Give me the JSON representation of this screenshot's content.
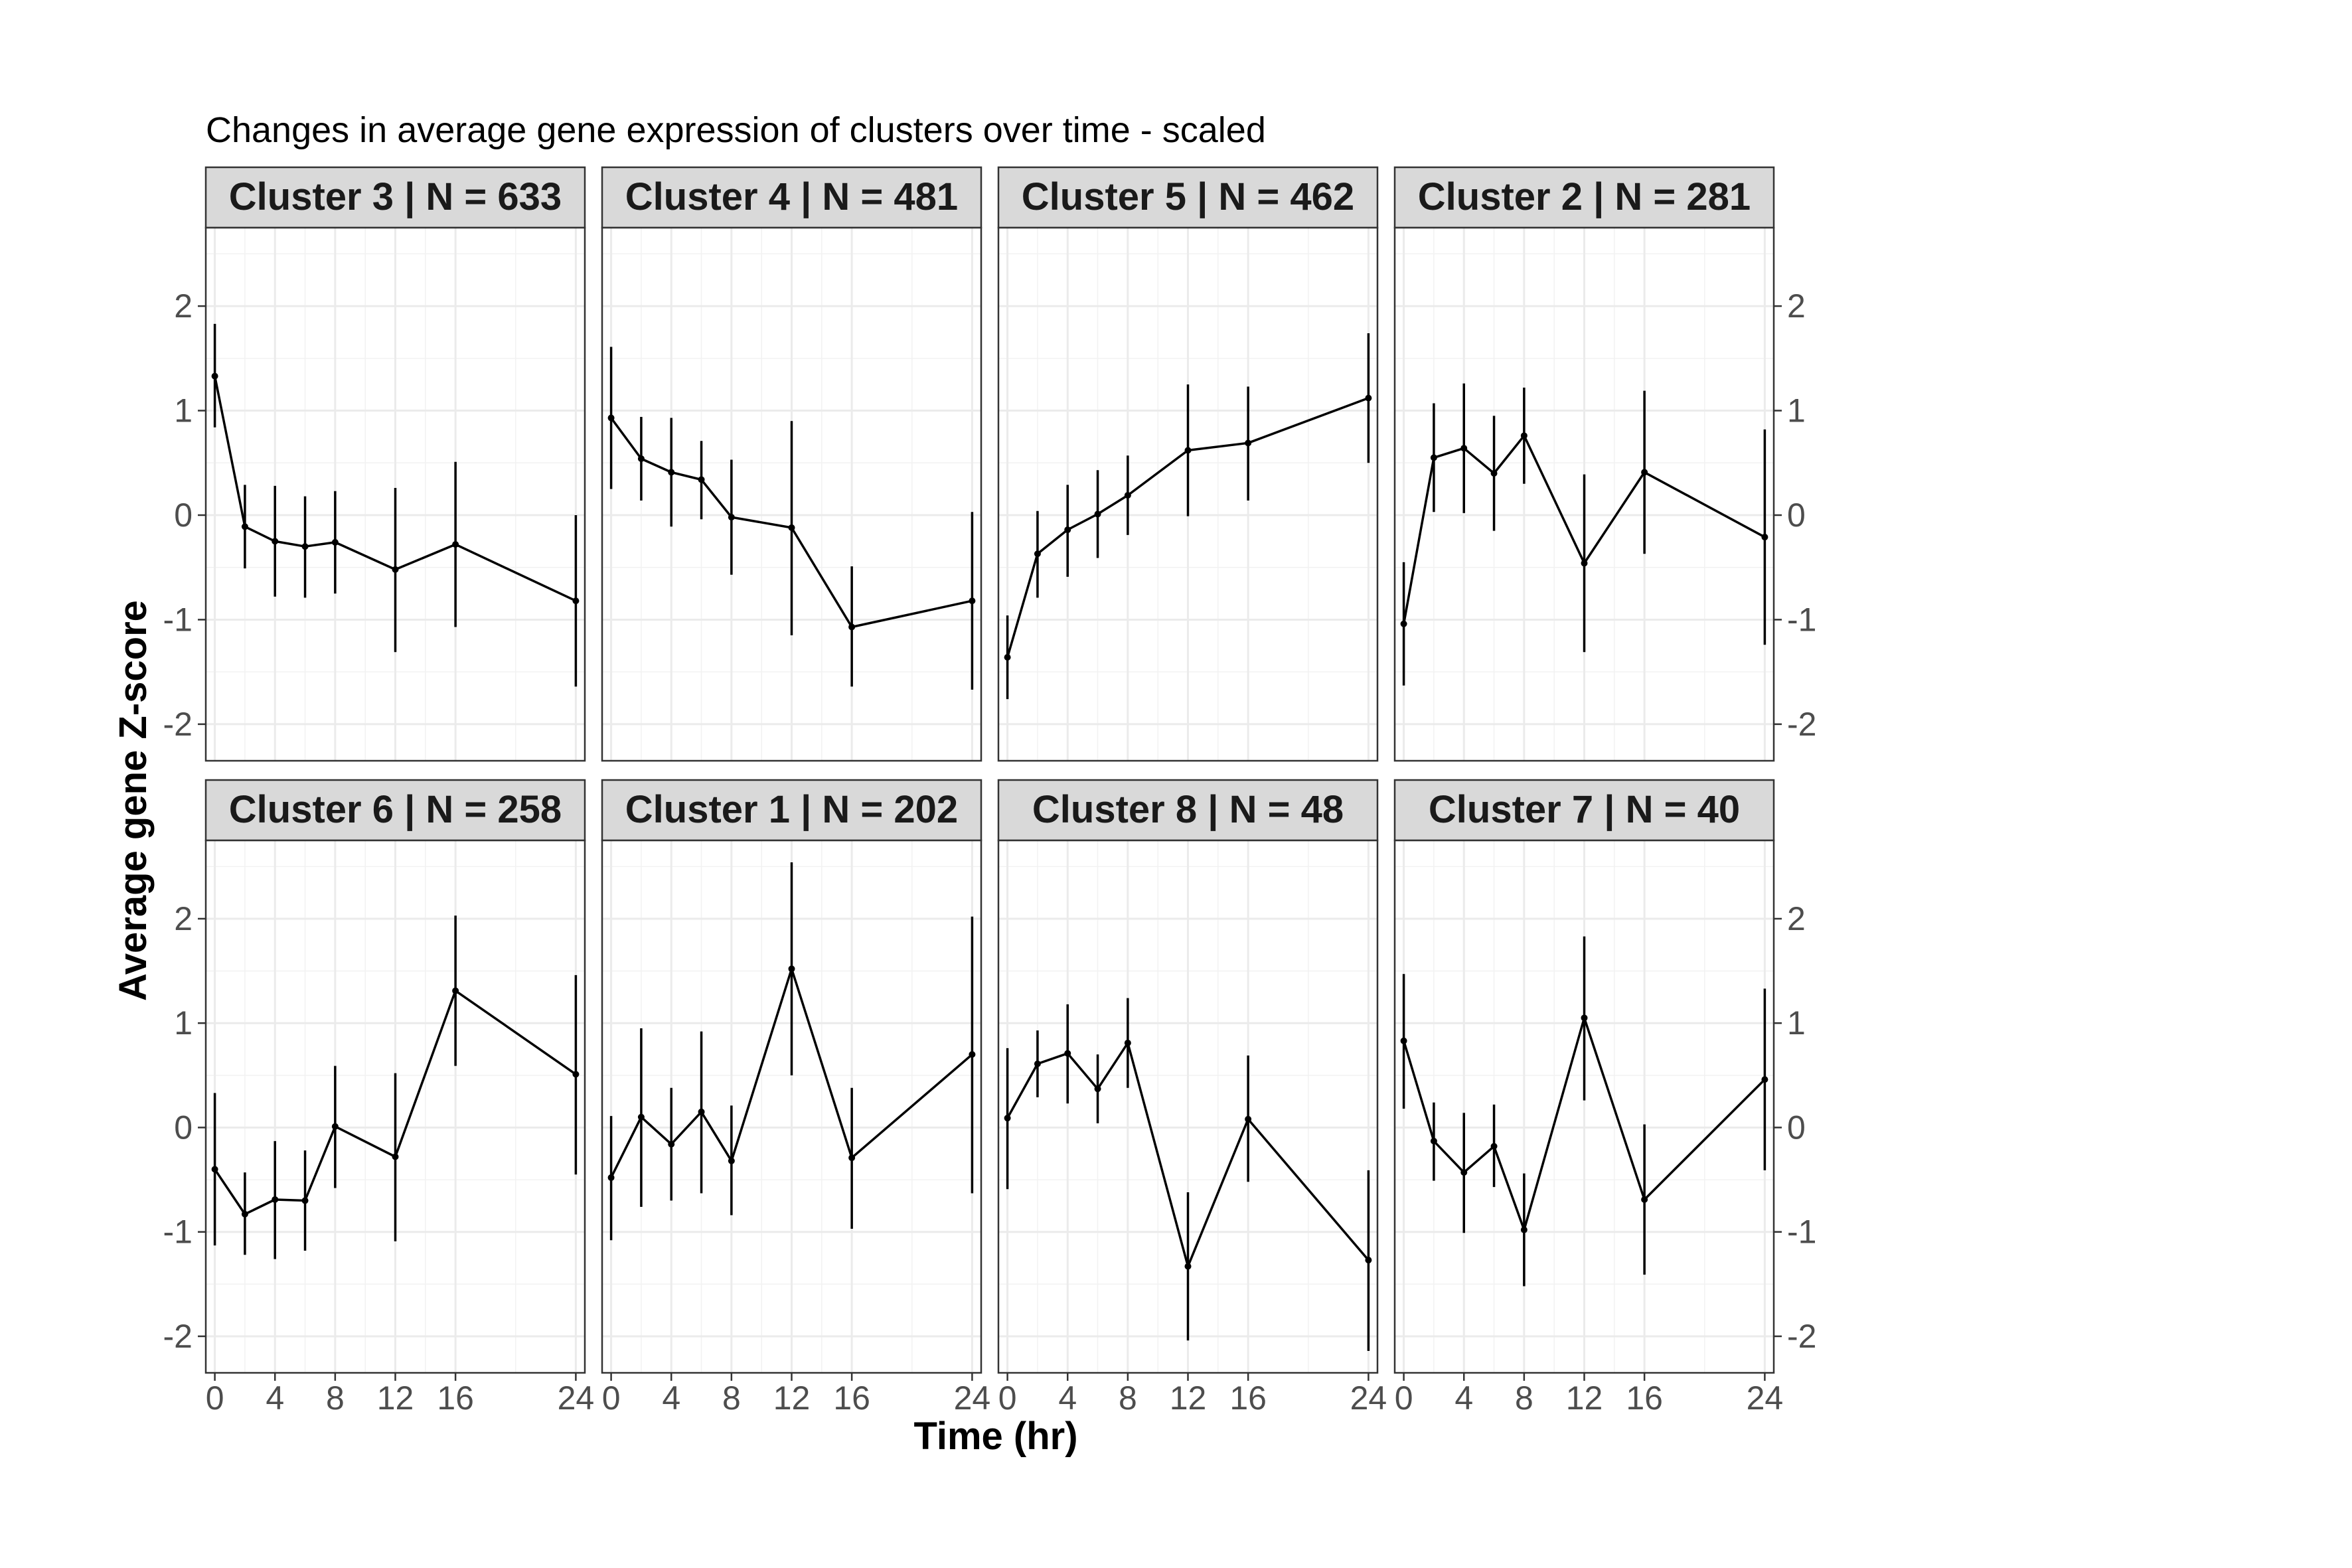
{
  "chart_data": {
    "type": "line",
    "title": "Changes in average gene expression of clusters over time - scaled",
    "xlabel": "Time (hr)",
    "ylabel": "Average gene Z-score",
    "x": [
      0,
      2,
      4,
      6,
      8,
      12,
      16,
      24
    ],
    "x_ticks": [
      0,
      4,
      8,
      12,
      16,
      24
    ],
    "y_ticks": [
      -2,
      -1,
      0,
      1,
      2
    ],
    "xlim": [
      -0.6,
      24.6
    ],
    "ylim": [
      -2.35,
      2.75
    ],
    "grid": true,
    "error_bars": true,
    "panels": [
      {
        "label": "Cluster 3 | N = 633",
        "values": [
          1.33,
          -0.11,
          -0.25,
          -0.3,
          -0.26,
          -0.52,
          -0.28,
          -0.82
        ],
        "lower": [
          0.84,
          -0.51,
          -0.78,
          -0.79,
          -0.75,
          -1.31,
          -1.07,
          -1.64
        ],
        "upper": [
          1.83,
          0.29,
          0.28,
          0.18,
          0.23,
          0.26,
          0.51,
          0.0
        ]
      },
      {
        "label": "Cluster 4 | N = 481",
        "values": [
          0.93,
          0.54,
          0.41,
          0.34,
          -0.02,
          -0.12,
          -1.07,
          -0.82
        ],
        "lower": [
          0.25,
          0.14,
          -0.11,
          -0.04,
          -0.57,
          -1.15,
          -1.64,
          -1.67
        ],
        "upper": [
          1.61,
          0.94,
          0.93,
          0.71,
          0.53,
          0.9,
          -0.49,
          0.03
        ]
      },
      {
        "label": "Cluster 5 | N = 462",
        "values": [
          -1.36,
          -0.37,
          -0.14,
          0.01,
          0.19,
          0.62,
          0.69,
          1.12
        ],
        "lower": [
          -1.76,
          -0.79,
          -0.59,
          -0.41,
          -0.19,
          -0.01,
          0.14,
          0.5
        ],
        "upper": [
          -0.96,
          0.04,
          0.29,
          0.43,
          0.57,
          1.25,
          1.23,
          1.74
        ]
      },
      {
        "label": "Cluster 2 | N = 281",
        "values": [
          -1.04,
          0.55,
          0.64,
          0.4,
          0.76,
          -0.46,
          0.41,
          -0.21
        ],
        "lower": [
          -1.63,
          0.03,
          0.02,
          -0.15,
          0.3,
          -1.31,
          -0.37,
          -1.24
        ],
        "upper": [
          -0.45,
          1.07,
          1.26,
          0.95,
          1.22,
          0.39,
          1.19,
          0.82
        ]
      },
      {
        "label": "Cluster 6 | N = 258",
        "values": [
          -0.4,
          -0.83,
          -0.69,
          -0.7,
          0.01,
          -0.28,
          1.31,
          0.51
        ],
        "lower": [
          -1.13,
          -1.22,
          -1.26,
          -1.18,
          -0.58,
          -1.09,
          0.59,
          -0.45
        ],
        "upper": [
          0.33,
          -0.43,
          -0.13,
          -0.22,
          0.59,
          0.52,
          2.03,
          1.46
        ]
      },
      {
        "label": "Cluster 1 | N = 202",
        "values": [
          -0.48,
          0.1,
          -0.16,
          0.15,
          -0.32,
          1.52,
          -0.29,
          0.7
        ],
        "lower": [
          -1.08,
          -0.76,
          -0.7,
          -0.63,
          -0.84,
          0.5,
          -0.97,
          -0.63
        ],
        "upper": [
          0.11,
          0.95,
          0.38,
          0.92,
          0.21,
          2.54,
          0.38,
          2.02
        ]
      },
      {
        "label": "Cluster 8 | N = 48",
        "values": [
          0.09,
          0.61,
          0.71,
          0.37,
          0.81,
          -1.33,
          0.08,
          -1.27
        ],
        "lower": [
          -0.59,
          0.29,
          0.23,
          0.04,
          0.38,
          -2.04,
          -0.52,
          -2.14
        ],
        "upper": [
          0.76,
          0.93,
          1.18,
          0.7,
          1.24,
          -0.62,
          0.69,
          -0.41
        ]
      },
      {
        "label": "Cluster 7 | N = 40",
        "values": [
          0.83,
          -0.13,
          -0.43,
          -0.18,
          -0.98,
          1.05,
          -0.69,
          0.46
        ],
        "lower": [
          0.18,
          -0.51,
          -1.01,
          -0.57,
          -1.52,
          0.26,
          -1.41,
          -0.41
        ],
        "upper": [
          1.47,
          0.24,
          0.14,
          0.22,
          -0.44,
          1.83,
          0.03,
          1.33
        ]
      }
    ]
  }
}
